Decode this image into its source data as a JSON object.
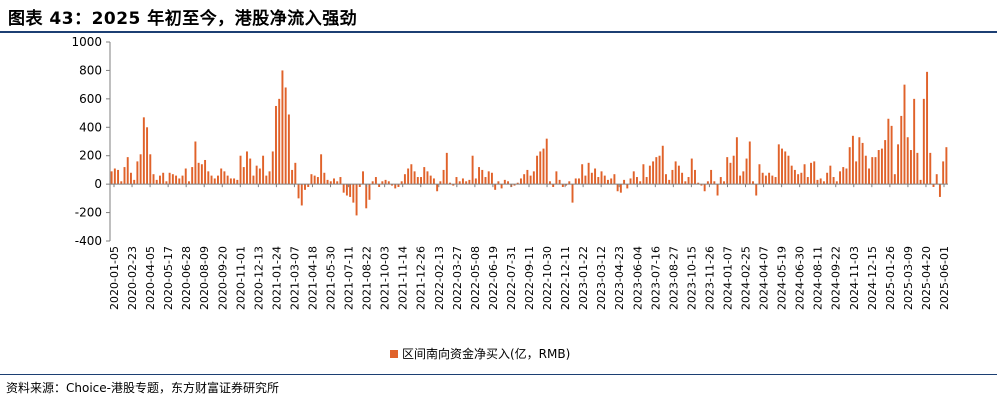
{
  "title": "图表 43：2025 年初至今，港股净流入强劲",
  "source": "资料来源：Choice-港股专题，东方财富证券研究所",
  "colors": {
    "bar": "#e0622a",
    "axis": "#7f7f7f",
    "rule": "#1c3f73"
  },
  "chart_data": {
    "type": "bar",
    "ylim": [
      -400,
      1000
    ],
    "yticks": [
      "1000",
      "800",
      "600",
      "400",
      "200",
      "0",
      "-200",
      "-400"
    ],
    "xlabel": "",
    "ylabel": "",
    "grid": false,
    "legend_position": "bottom-center",
    "x_tick_labels": [
      "2020-01-05",
      "2020-02-23",
      "2020-04-05",
      "2020-05-17",
      "2020-06-28",
      "2020-08-09",
      "2020-09-20",
      "2020-11-01",
      "2020-12-13",
      "2021-01-24",
      "2021-03-07",
      "2021-04-18",
      "2021-05-30",
      "2021-07-11",
      "2021-08-22",
      "2021-10-03",
      "2021-11-14",
      "2021-12-26",
      "2022-02-13",
      "2022-03-27",
      "2022-05-08",
      "2022-06-19",
      "2022-07-31",
      "2022-09-11",
      "2022-10-30",
      "2022-12-11",
      "2023-01-22",
      "2023-03-12",
      "2023-04-23",
      "2023-06-04",
      "2023-07-16",
      "2023-08-27",
      "2023-10-15",
      "2023-11-26",
      "2024-01-07",
      "2024-02-25",
      "2024-04-07",
      "2024-05-19",
      "2024-06-30",
      "2024-08-11",
      "2024-09-22",
      "2024-11-03",
      "2024-12-15",
      "2025-01-26",
      "2025-03-09",
      "2025-04-20",
      "2025-06-01"
    ],
    "series": [
      {
        "name": "区间南向资金净买入(亿，RMB)",
        "values": [
          90,
          110,
          100,
          20,
          120,
          190,
          80,
          30,
          160,
          210,
          470,
          400,
          210,
          70,
          30,
          60,
          80,
          20,
          80,
          70,
          60,
          40,
          60,
          110,
          20,
          120,
          300,
          150,
          140,
          170,
          90,
          60,
          40,
          60,
          110,
          90,
          60,
          40,
          40,
          30,
          200,
          120,
          230,
          180,
          60,
          130,
          110,
          200,
          60,
          90,
          230,
          550,
          600,
          800,
          680,
          490,
          100,
          150,
          -100,
          -150,
          -40,
          -20,
          70,
          60,
          50,
          210,
          80,
          30,
          20,
          40,
          20,
          50,
          -60,
          -80,
          -90,
          -130,
          -220,
          -20,
          90,
          -170,
          -110,
          20,
          50,
          -20,
          20,
          30,
          20,
          -10,
          -30,
          -20,
          20,
          70,
          110,
          140,
          90,
          50,
          50,
          120,
          90,
          60,
          40,
          -50,
          20,
          100,
          220,
          10,
          -10,
          50,
          20,
          40,
          20,
          30,
          200,
          40,
          120,
          100,
          50,
          90,
          80,
          -40,
          20,
          -30,
          30,
          20,
          -20,
          -10,
          10,
          40,
          70,
          100,
          60,
          90,
          200,
          230,
          250,
          320,
          20,
          -20,
          90,
          30,
          -20,
          -10,
          20,
          -130,
          40,
          40,
          140,
          60,
          150,
          80,
          110,
          50,
          90,
          60,
          30,
          40,
          70,
          -50,
          -60,
          30,
          -30,
          40,
          90,
          50,
          20,
          140,
          50,
          130,
          160,
          190,
          200,
          270,
          70,
          30,
          100,
          160,
          130,
          80,
          20,
          50,
          180,
          100,
          10,
          -10,
          -50,
          20,
          100,
          20,
          -80,
          50,
          20,
          190,
          150,
          200,
          330,
          60,
          90,
          180,
          300,
          20,
          -80,
          140,
          80,
          60,
          80,
          60,
          50,
          280,
          250,
          230,
          200,
          130,
          100,
          70,
          80,
          140,
          50,
          150,
          160,
          30,
          40,
          20,
          80,
          130,
          50,
          20,
          90,
          120,
          110,
          260,
          340,
          160,
          330,
          290,
          200,
          110,
          190,
          190,
          240,
          250,
          310,
          460,
          410,
          70,
          280,
          480,
          700,
          330,
          240,
          600,
          220,
          30,
          600,
          790,
          220,
          -20,
          70,
          -90,
          160,
          260
        ]
      }
    ]
  }
}
